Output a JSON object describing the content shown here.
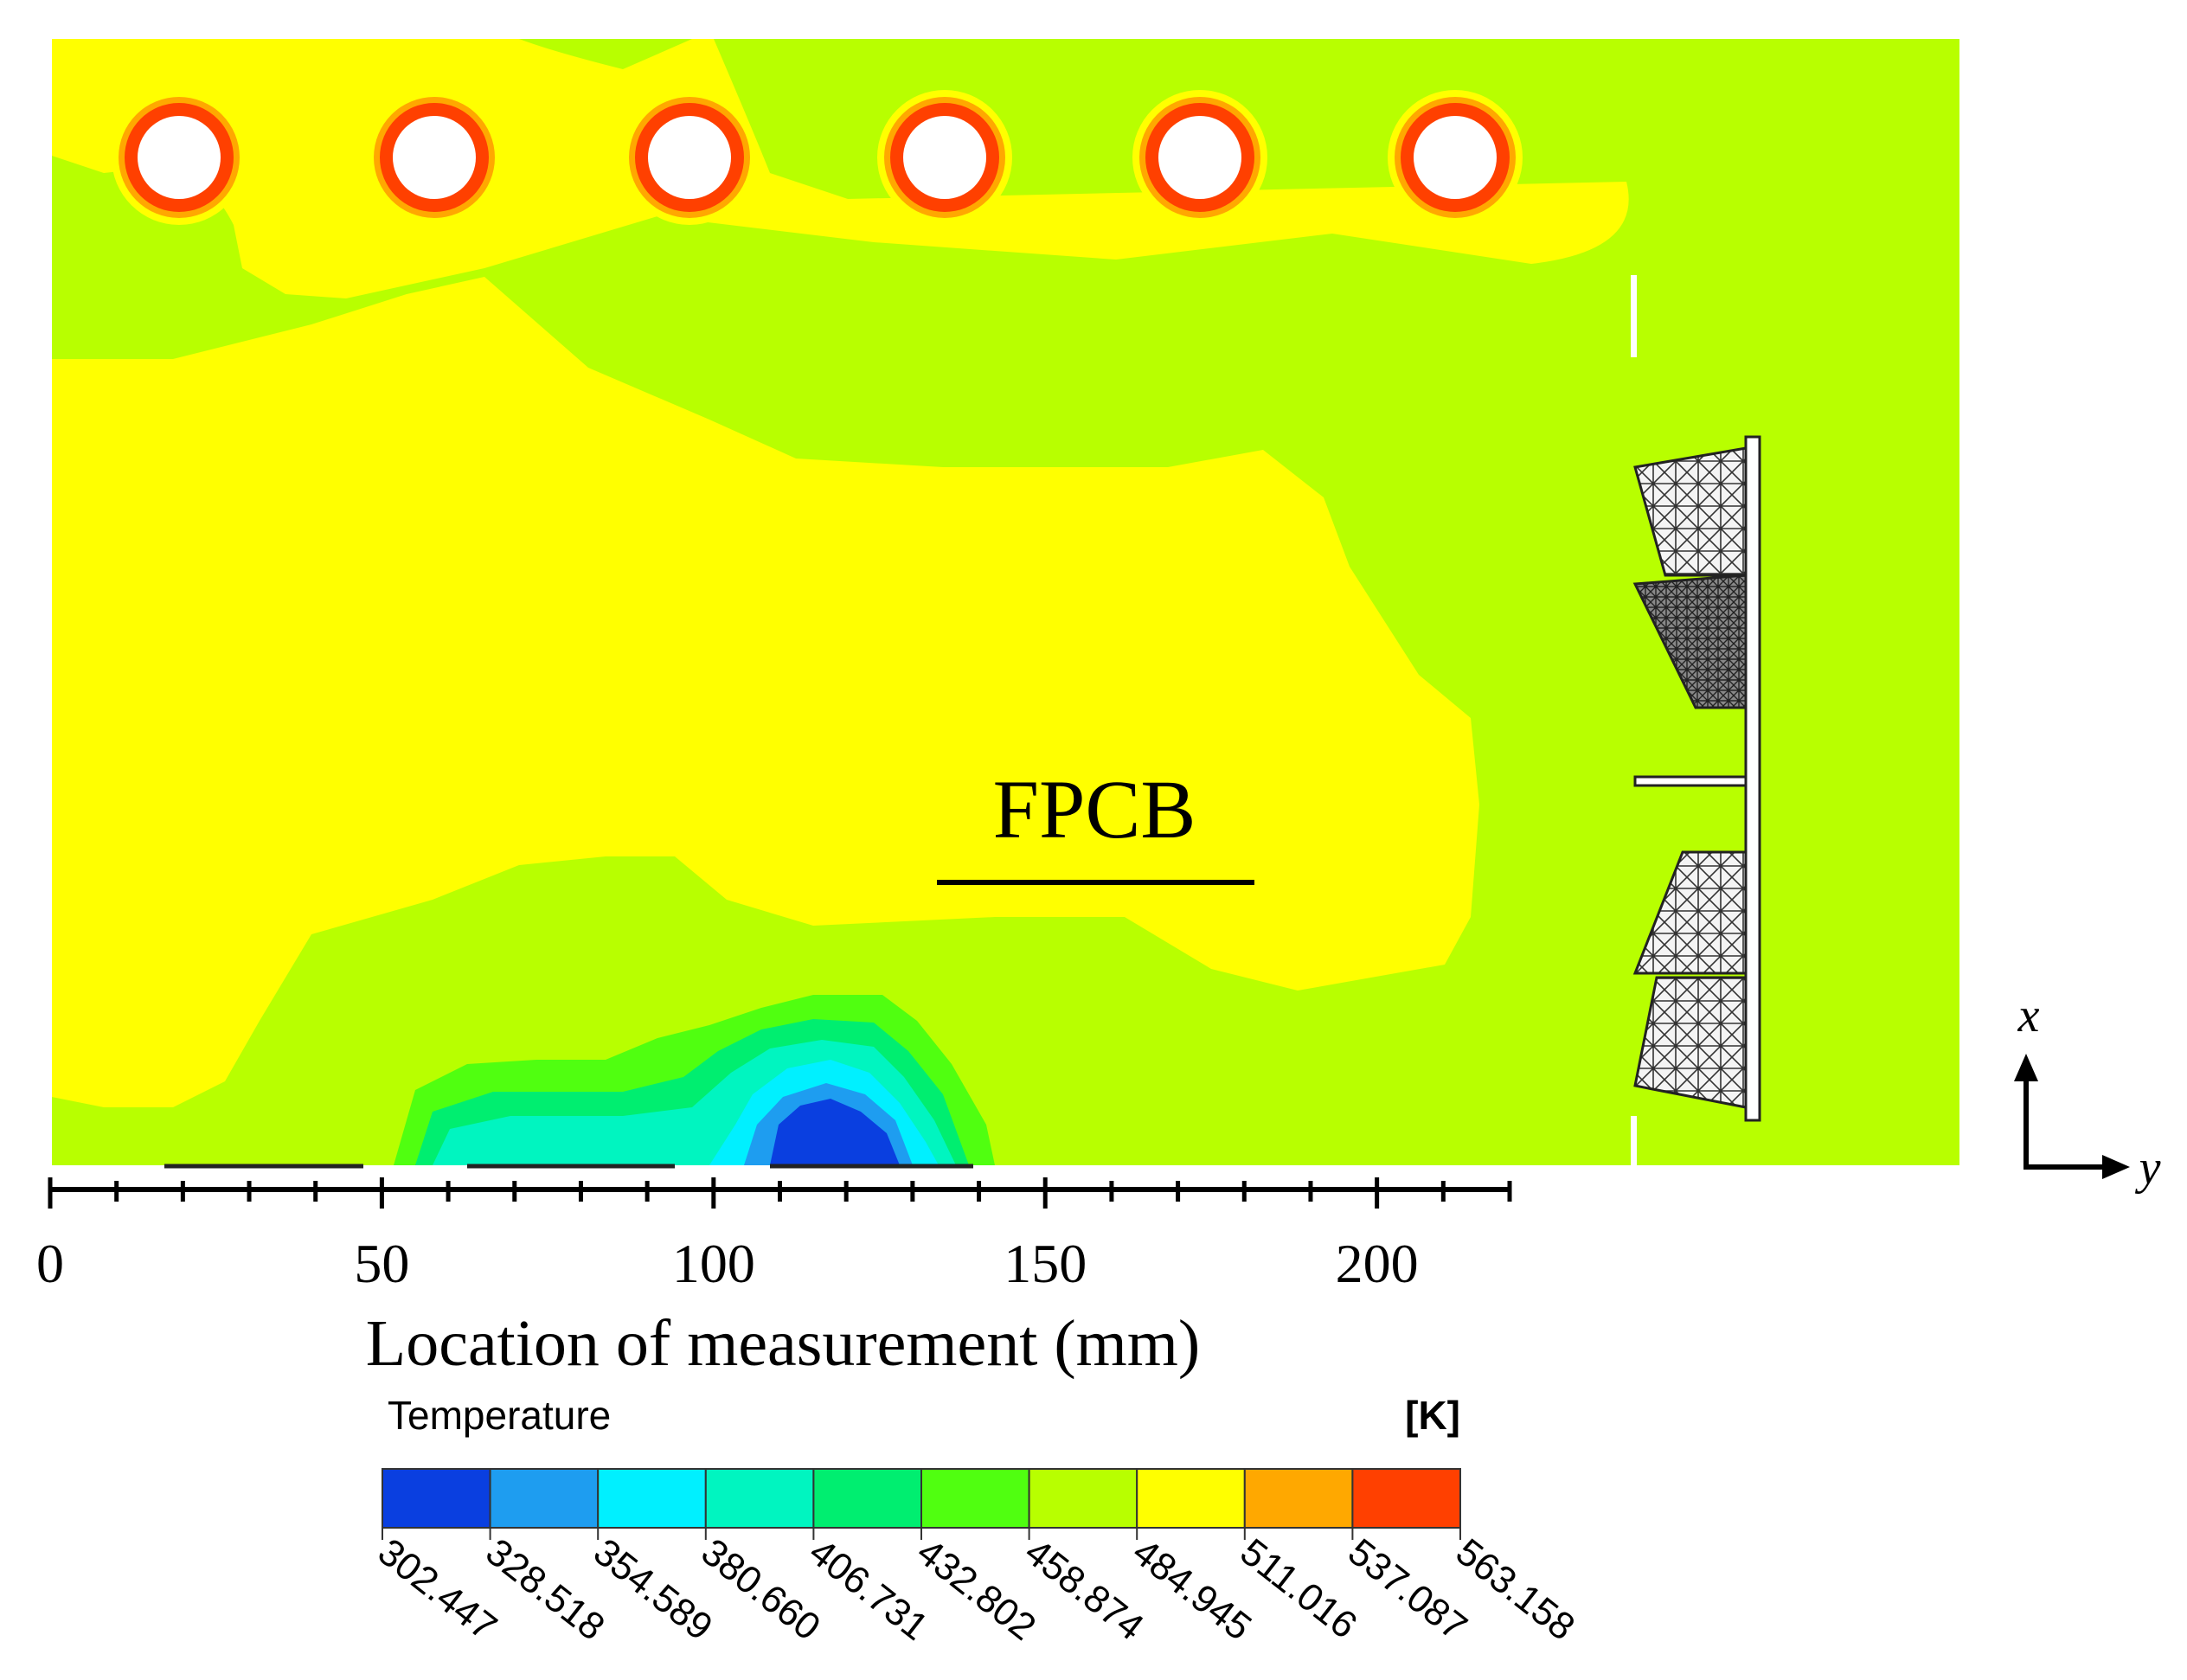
{
  "annotation": {
    "label": "FPCB"
  },
  "axis": {
    "xlabel": "Location of measurement (mm)",
    "ticks": [
      "0",
      "50",
      "100",
      "150",
      "200"
    ],
    "tick_values": [
      0,
      50,
      100,
      150,
      200
    ],
    "range_mm": [
      0,
      220
    ],
    "minor_step_mm": 10
  },
  "orientation": {
    "vertical_label": "x",
    "horizontal_label": "y"
  },
  "legend": {
    "title": "Temperature",
    "unit": "[K]",
    "values": [
      "302.447",
      "328.518",
      "354.589",
      "380.660",
      "406.731",
      "432.802",
      "458.874",
      "484.945",
      "511.016",
      "537.087",
      "563.158"
    ],
    "colors": [
      "#0a3fe0",
      "#1e9df0",
      "#00f0ff",
      "#00f5c0",
      "#00ee70",
      "#50ff10",
      "#b8ff00",
      "#ffff00",
      "#ffa800",
      "#ff4000"
    ]
  },
  "field_colors": {
    "background": "#b8ff00",
    "warm": "#ffff00",
    "hot": "#ffa800",
    "hottest": "#ff4000",
    "cool_1": "#50ff10",
    "cool_2": "#00ee70",
    "cool_3": "#00f5c0",
    "cool_4": "#00f0ff",
    "cool_5": "#1e9df0",
    "coldest": "#0a3fe0"
  },
  "heaters": {
    "count": 6
  }
}
